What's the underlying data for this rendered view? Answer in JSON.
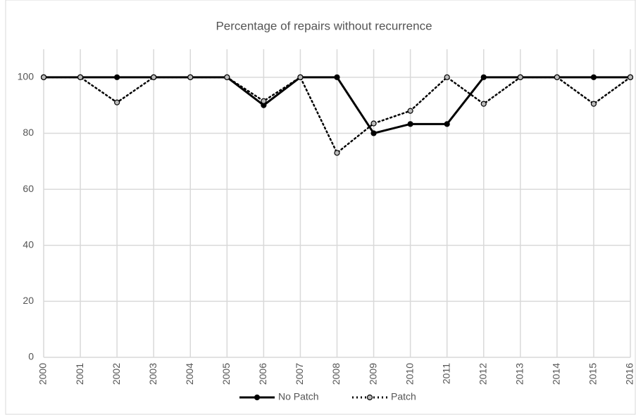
{
  "chart_data": {
    "type": "line",
    "title": "Percentage of repairs without recurrence",
    "categories": [
      "2000",
      "2001",
      "2002",
      "2003",
      "2004",
      "2005",
      "2006",
      "2007",
      "2008",
      "2009",
      "2010",
      "2011",
      "2012",
      "2013",
      "2014",
      "2015",
      "2016"
    ],
    "series": [
      {
        "name": "No Patch",
        "color": "#000000",
        "line_style": "solid",
        "marker_fill": "#000000",
        "values": [
          100,
          100,
          100,
          100,
          100,
          100,
          90,
          100,
          100,
          80,
          83.3,
          83.3,
          100,
          100,
          100,
          100,
          100
        ]
      },
      {
        "name": "Patch",
        "color": "#000000",
        "line_style": "dotted",
        "marker_fill": "#bbbbbb",
        "values": [
          100,
          100,
          91,
          100,
          100,
          100,
          91.5,
          100,
          73,
          83.5,
          88,
          100,
          90.5,
          100,
          100,
          90.5,
          100
        ]
      }
    ],
    "ylim": [
      0,
      110
    ],
    "yticks": [
      0,
      20,
      40,
      60,
      80,
      100
    ],
    "grid": true,
    "legend": "bottom"
  }
}
